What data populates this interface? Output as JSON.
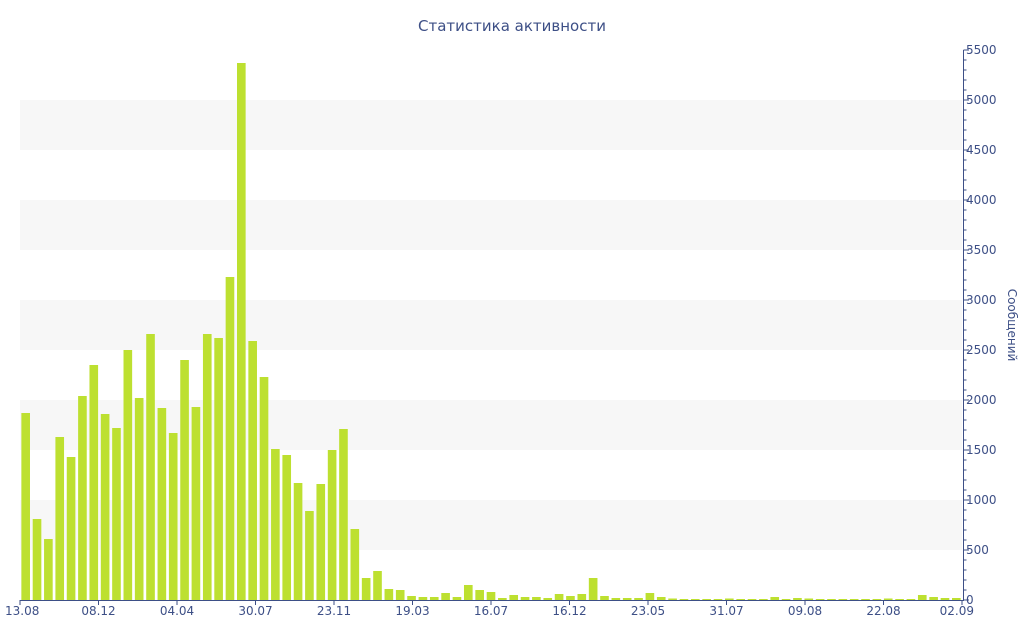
{
  "chart_data": {
    "type": "bar",
    "title": "Статистика активности",
    "xlabel": "",
    "ylabel": "Сообщений",
    "y_axis_side": "right",
    "ylim": [
      0,
      5500
    ],
    "yticks": [
      0,
      500,
      1000,
      1500,
      2000,
      2500,
      3000,
      3500,
      4000,
      4500,
      5000,
      5500
    ],
    "x_tick_labels": [
      "13.08",
      "08.12",
      "04.04",
      "30.07",
      "23.11",
      "19.03",
      "16.07",
      "16.12",
      "23.05",
      "31.07",
      "09.08",
      "22.08",
      "02.09"
    ],
    "bar_color": "#bde030",
    "band_color": "#f7f7f7",
    "axis_color": "#3d4f86",
    "grid": "alternating horizontal bands",
    "legend": "none",
    "series": [
      {
        "values": [
          1870,
          810,
          610,
          1630,
          1430,
          2040,
          2350,
          1860,
          1720,
          2500,
          2020,
          2660,
          1920,
          1670,
          2400,
          1930,
          2660,
          2620,
          3230,
          5370,
          2590,
          2230,
          1510,
          1450,
          1170,
          890,
          1160,
          1500,
          1710,
          710,
          220,
          290,
          110,
          100,
          40,
          30,
          30,
          70,
          30,
          150,
          100,
          80,
          20,
          50,
          30,
          30,
          20,
          60,
          40,
          60,
          220,
          40,
          20,
          20,
          20,
          70,
          30,
          15,
          10,
          10,
          10,
          10,
          15,
          10,
          10,
          10,
          30,
          10,
          20,
          15,
          10,
          10,
          10,
          10,
          10,
          10,
          15,
          10,
          10,
          50,
          30,
          20,
          20
        ]
      }
    ]
  }
}
